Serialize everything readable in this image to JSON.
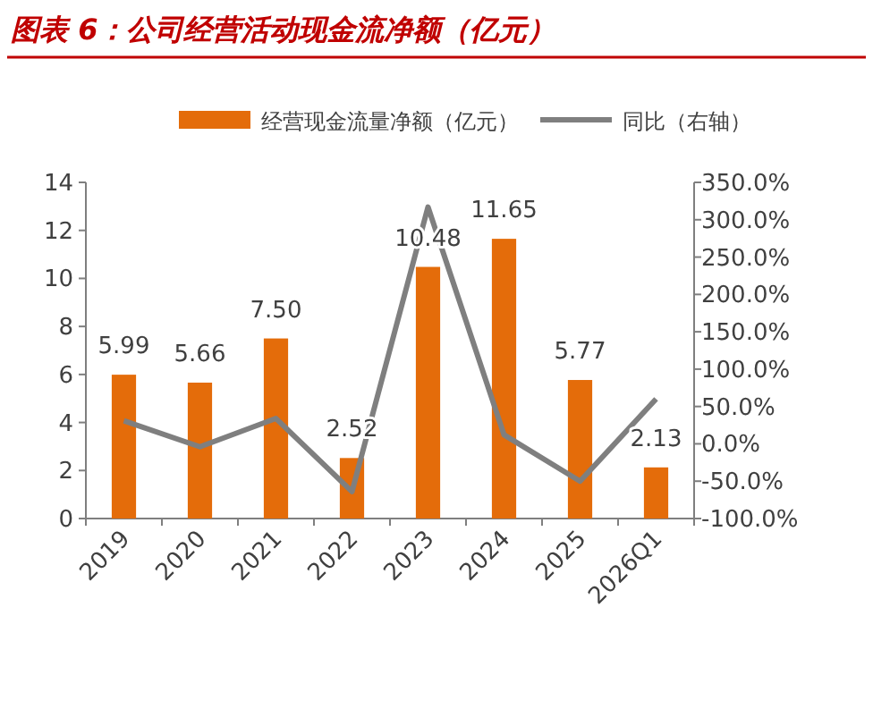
{
  "chart_data": {
    "type": "bar",
    "title": "图表 6：公司经营活动现金流净额（亿元）",
    "categories": [
      "2019",
      "2020",
      "2021",
      "2022",
      "2023",
      "2024",
      "2025",
      "2026Q1"
    ],
    "series": [
      {
        "name": "经营现金流量净额（亿元）",
        "color": "#e46c0a",
        "values": [
          5.99,
          5.66,
          7.5,
          2.52,
          10.48,
          11.65,
          5.77,
          2.13
        ],
        "value_labels": [
          "5.99",
          "5.66",
          "7.50",
          "2.52",
          "10.48",
          "11.65",
          "5.77",
          "2.13"
        ]
      },
      {
        "name": "同比（右轴）",
        "type": "line",
        "axis": "y2",
        "color": "#7f7f7f",
        "values": [
          31,
          -4,
          34,
          -64,
          317,
          12,
          -50,
          60
        ]
      }
    ],
    "ylim": [
      0,
      14
    ],
    "yticks": [
      0,
      2,
      4,
      6,
      8,
      10,
      12,
      14
    ],
    "y2lim": [
      -100,
      350
    ],
    "y2ticks": [
      {
        "value": -100,
        "label": "-100.0%"
      },
      {
        "value": -50,
        "label": "-50.0%"
      },
      {
        "value": 0,
        "label": "0.0%"
      },
      {
        "value": 50,
        "label": "50.0%"
      },
      {
        "value": 100,
        "label": "100.0%"
      },
      {
        "value": 150,
        "label": "150.0%"
      },
      {
        "value": 200,
        "label": "200.0%"
      },
      {
        "value": 250,
        "label": "250.0%"
      },
      {
        "value": 300,
        "label": "300.0%"
      },
      {
        "value": 350,
        "label": "350.0%"
      }
    ],
    "legend": "top",
    "grid": false
  }
}
